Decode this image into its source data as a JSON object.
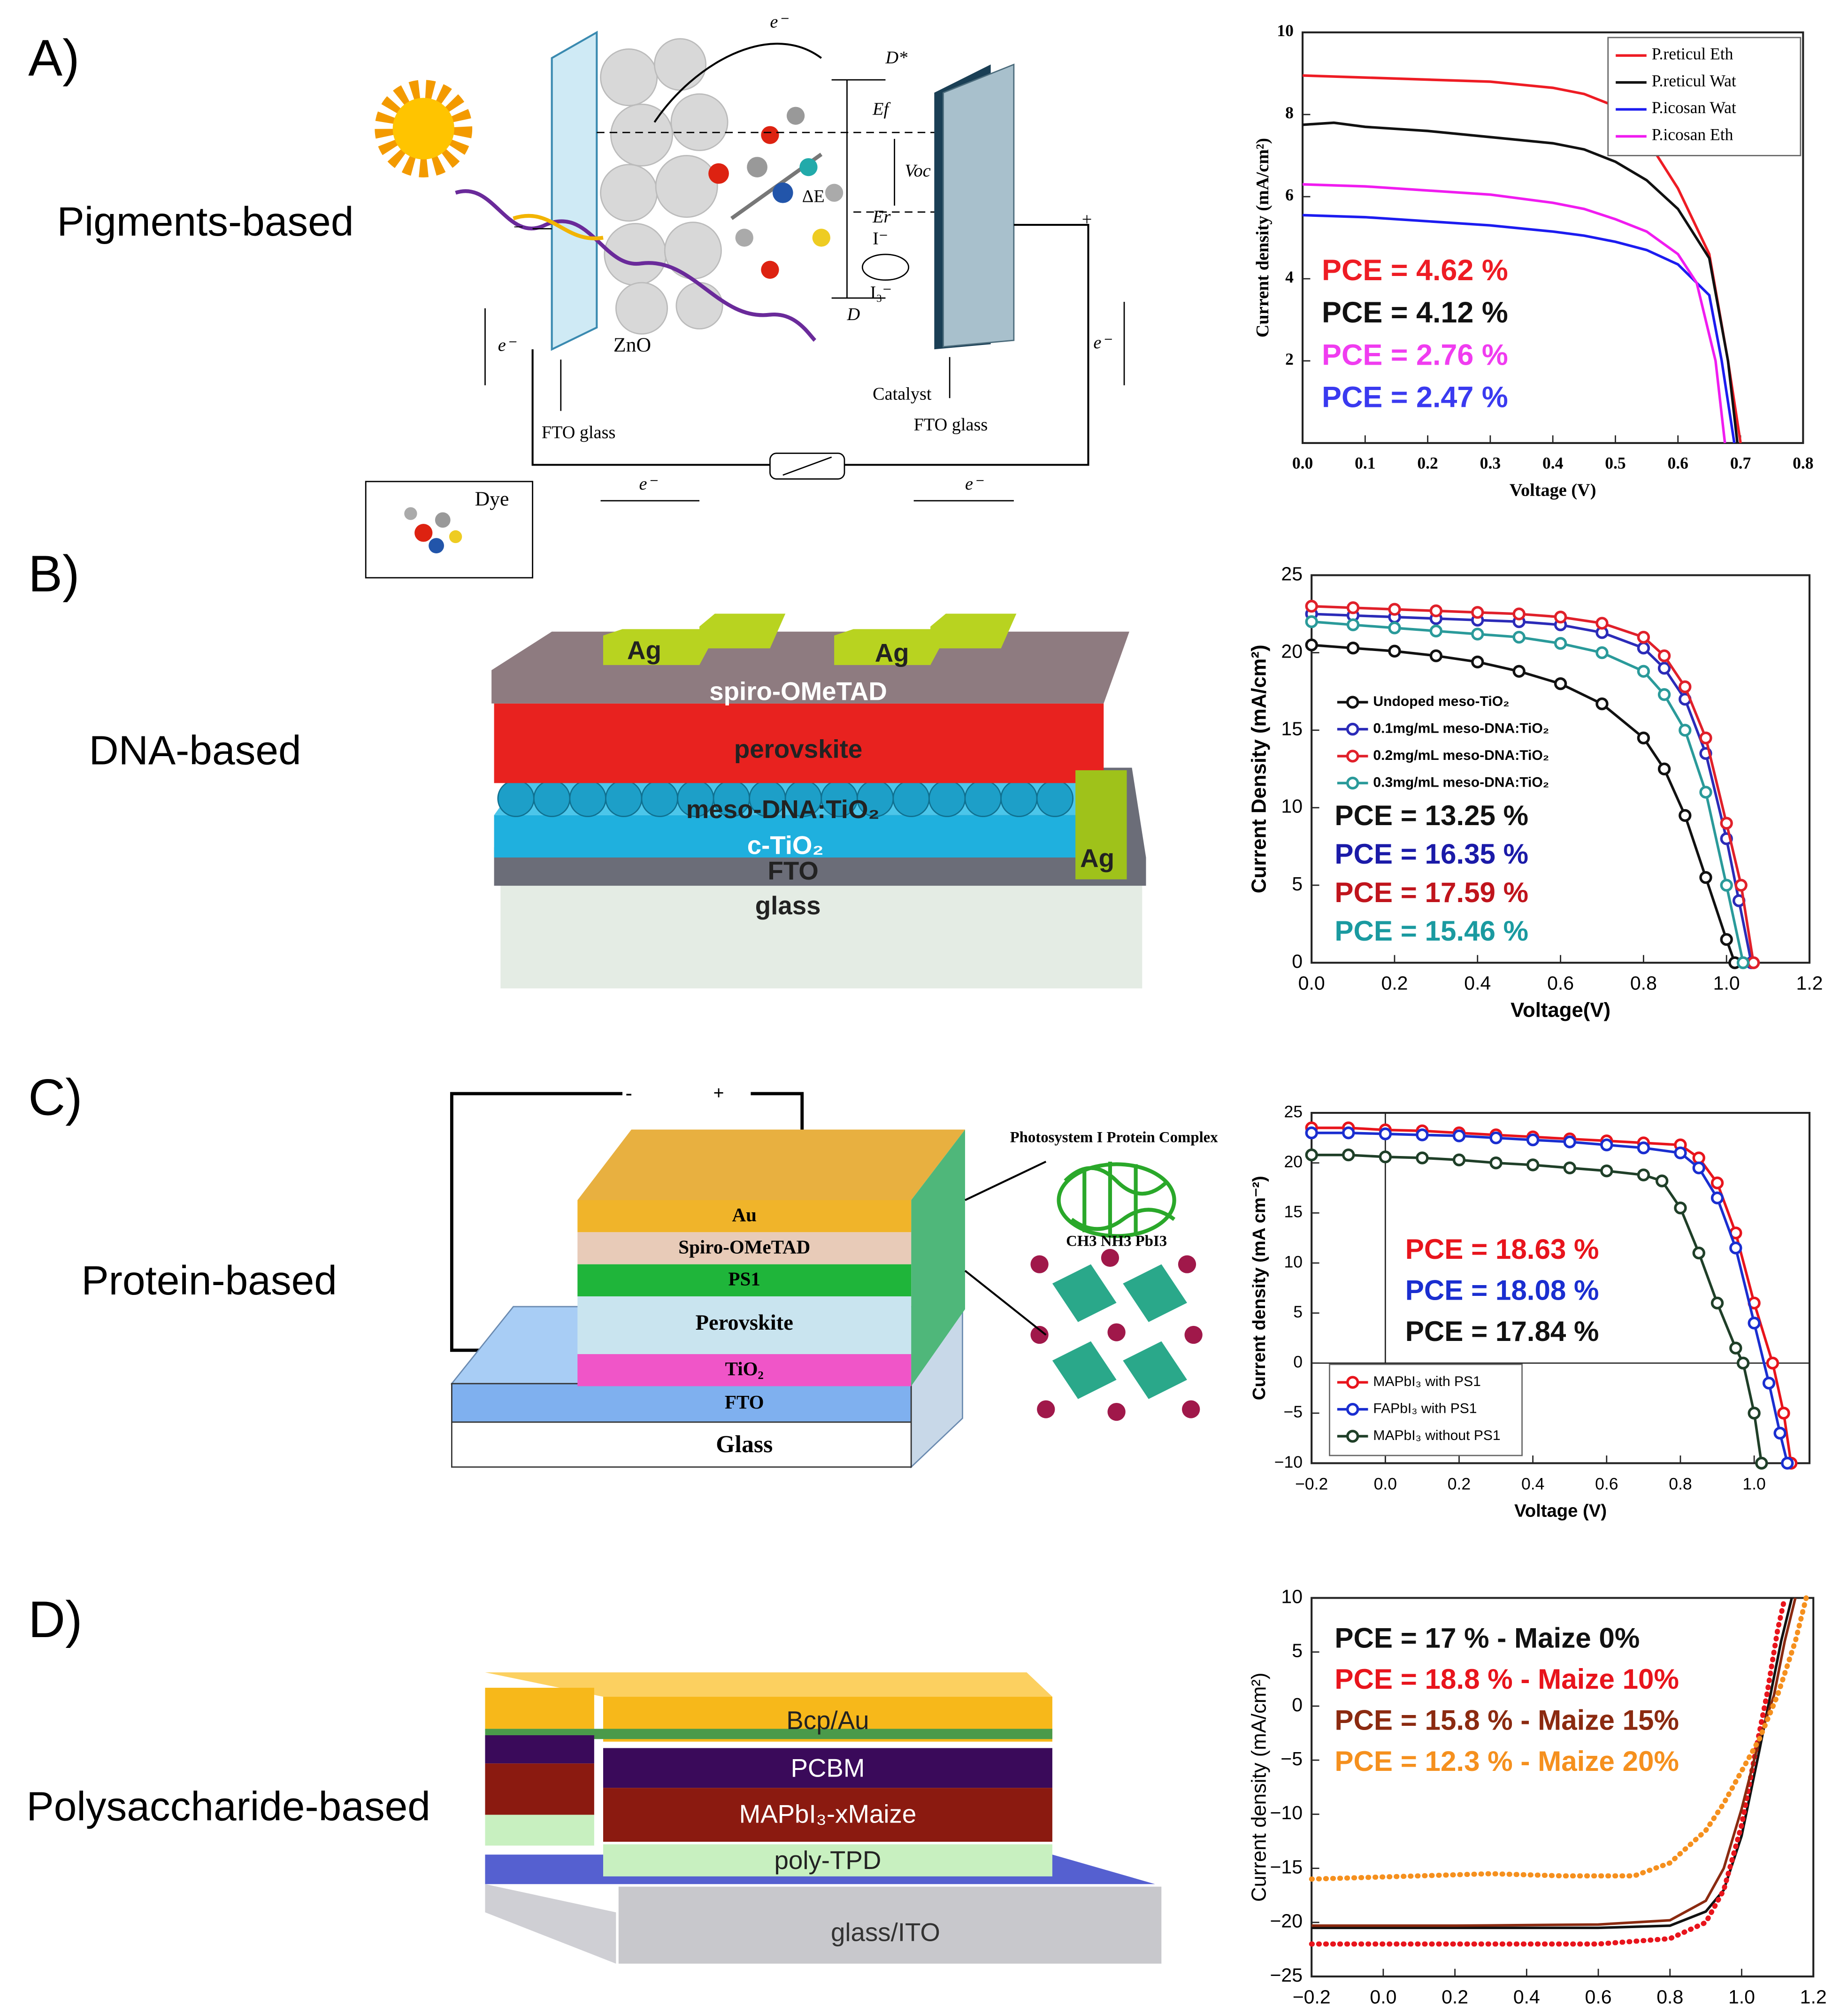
{
  "panels": [
    {
      "label": "A)",
      "name": "Pigments-based",
      "diagram": [
        "e⁻",
        "D*",
        "Ef",
        "Voc",
        "ΔE",
        "Er",
        "I⁻",
        "I₃⁻",
        "D",
        "ZnO",
        "FTO glass",
        "Catalyst",
        "FTO glass",
        "Dye",
        "e⁻",
        "e⁻",
        "e⁻",
        "e⁻",
        "−",
        "+"
      ]
    },
    {
      "label": "B)",
      "name": "DNA-based",
      "diagram": [
        "Ag",
        "Ag",
        "spiro-OMeTAD",
        "perovskite",
        "meso-DNA:TiO₂",
        "c-TiO₂",
        "FTO",
        "glass",
        "Ag"
      ]
    },
    {
      "label": "C)",
      "name": "Protein-based",
      "diagram": [
        "-",
        "+",
        "Au",
        "Spiro-OMeTAD",
        "PS1",
        "Perovskite",
        "TiO₂",
        "FTO",
        "Glass",
        "Photosystem I Protein Complex",
        "CH3 NH3 PbI3"
      ]
    },
    {
      "label": "D)",
      "name": "Polysaccharide-based",
      "diagram": [
        "Bcp/Au",
        "PCBM",
        "MAPbI₃-xMaize",
        "poly-TPD",
        "glass/ITO"
      ]
    }
  ],
  "chart_data": [
    {
      "type": "line",
      "x_label": "Voltage (V)",
      "y_label": "Current density (mA/cm²)",
      "xlim": [
        0,
        0.8
      ],
      "xticks": [
        {
          "value": 0,
          "label": "0.0"
        },
        0.1,
        0.2,
        0.3,
        0.4,
        0.5,
        0.6,
        0.7,
        0.8
      ],
      "ylim": [
        0,
        10
      ],
      "yticks": [
        2,
        4,
        6,
        8,
        10
      ],
      "legend": "top-right",
      "series": [
        {
          "name": "P.reticul Eth",
          "color": "#ee1c24",
          "x": [
            0,
            0.1,
            0.2,
            0.3,
            0.4,
            0.45,
            0.5,
            0.55,
            0.6,
            0.65,
            0.68,
            0.7
          ],
          "values": [
            8.95,
            8.9,
            8.85,
            8.8,
            8.65,
            8.5,
            8.2,
            7.4,
            6.2,
            4.6,
            2.0,
            0
          ]
        },
        {
          "name": "P.reticul Wat",
          "color": "#111111",
          "x": [
            0,
            0.05,
            0.1,
            0.2,
            0.3,
            0.4,
            0.45,
            0.5,
            0.55,
            0.6,
            0.65,
            0.68,
            0.695
          ],
          "values": [
            7.75,
            7.8,
            7.7,
            7.6,
            7.45,
            7.3,
            7.15,
            6.85,
            6.4,
            5.7,
            4.5,
            2.0,
            0
          ]
        },
        {
          "name": "P.icosan Wat",
          "color": "#1c1cf0",
          "x": [
            0,
            0.1,
            0.2,
            0.3,
            0.4,
            0.45,
            0.5,
            0.55,
            0.6,
            0.65,
            0.67,
            0.69
          ],
          "values": [
            5.55,
            5.5,
            5.4,
            5.3,
            5.15,
            5.05,
            4.9,
            4.7,
            4.35,
            3.6,
            2.0,
            0
          ]
        },
        {
          "name": "P.icosan Eth",
          "color": "#f01cf0",
          "x": [
            0,
            0.1,
            0.2,
            0.3,
            0.4,
            0.45,
            0.5,
            0.55,
            0.6,
            0.63,
            0.66,
            0.675
          ],
          "values": [
            6.3,
            6.25,
            6.15,
            6.05,
            5.85,
            5.7,
            5.45,
            5.15,
            4.6,
            3.9,
            2.0,
            0
          ]
        }
      ],
      "annotations": [
        {
          "text": "PCE = 4.62 %",
          "color": "#ee1c24"
        },
        {
          "text": "PCE = 4.12 %",
          "color": "#111111"
        },
        {
          "text": "PCE = 2.76 %",
          "color": "#f03cf0"
        },
        {
          "text": "PCE = 2.47 %",
          "color": "#3a3af0"
        }
      ]
    },
    {
      "type": "line",
      "x_label": "Voltage(V)",
      "y_label": "Current Density (mA/cm²)",
      "xlim": [
        0,
        1.2
      ],
      "xticks": [
        {
          "value": 0,
          "label": "0.0"
        },
        0.2,
        0.4,
        0.6,
        0.8,
        {
          "value": 1,
          "label": "1.0"
        },
        1.2
      ],
      "ylim": [
        0,
        25
      ],
      "yticks": [
        0,
        5,
        10,
        15,
        20,
        25
      ],
      "legend": "middle-left",
      "marker": "circle",
      "series": [
        {
          "name": "Undoped meso-TiO₂",
          "color": "#111111",
          "x": [
            0,
            0.1,
            0.2,
            0.3,
            0.4,
            0.5,
            0.6,
            0.7,
            0.8,
            0.85,
            0.9,
            0.95,
            1.0,
            1.02
          ],
          "values": [
            20.5,
            20.3,
            20.1,
            19.8,
            19.4,
            18.8,
            18,
            16.7,
            14.5,
            12.5,
            9.5,
            5.5,
            1.5,
            0
          ]
        },
        {
          "name": "0.1mg/mL meso-DNA:TiO₂",
          "color": "#2b2bb8",
          "x": [
            0,
            0.1,
            0.2,
            0.3,
            0.4,
            0.5,
            0.6,
            0.7,
            0.8,
            0.85,
            0.9,
            0.95,
            1.0,
            1.03,
            1.06
          ],
          "values": [
            22.5,
            22.4,
            22.3,
            22.2,
            22.1,
            22,
            21.8,
            21.3,
            20.3,
            19,
            17,
            13.5,
            8,
            4,
            0
          ]
        },
        {
          "name": "0.2mg/mL meso-DNA:TiO₂",
          "color": "#e0202a",
          "x": [
            0,
            0.1,
            0.2,
            0.3,
            0.4,
            0.5,
            0.6,
            0.7,
            0.8,
            0.85,
            0.9,
            0.95,
            1.0,
            1.035,
            1.065
          ],
          "values": [
            23,
            22.9,
            22.8,
            22.7,
            22.6,
            22.5,
            22.3,
            21.9,
            21,
            19.8,
            17.8,
            14.5,
            9,
            5,
            0
          ]
        },
        {
          "name": "0.3mg/mL meso-DNA:TiO₂",
          "color": "#2a9a9a",
          "x": [
            0,
            0.1,
            0.2,
            0.3,
            0.4,
            0.5,
            0.6,
            0.7,
            0.8,
            0.85,
            0.9,
            0.95,
            1.0,
            1.04
          ],
          "values": [
            22,
            21.8,
            21.6,
            21.4,
            21.2,
            21,
            20.6,
            20,
            18.8,
            17.3,
            15,
            11,
            5,
            0
          ]
        }
      ],
      "annotations": [
        {
          "text": "PCE = 13.25 %",
          "color": "#111111"
        },
        {
          "text": "PCE = 16.35 %",
          "color": "#1a1aa8"
        },
        {
          "text": "PCE = 17.59 %",
          "color": "#c0141c"
        },
        {
          "text": "PCE = 15.46 %",
          "color": "#1a9aa0"
        }
      ]
    },
    {
      "type": "line",
      "x_label": "Voltage (V)",
      "y_label": "Current density (mA cm⁻²)",
      "xlim": [
        -0.2,
        1.15
      ],
      "xticks": [
        {
          "value": -0.2,
          "label": "−0.2"
        },
        {
          "value": 0,
          "label": "0.0"
        },
        0.2,
        0.4,
        0.6,
        0.8,
        {
          "value": 1,
          "label": "1.0"
        }
      ],
      "ylim": [
        -10,
        25
      ],
      "yticks": [
        {
          "value": -10,
          "label": "−10"
        },
        {
          "value": -5,
          "label": "−5"
        },
        0,
        5,
        10,
        15,
        20,
        25
      ],
      "legend": "bottom-left",
      "marker": "circle",
      "zero_lines": true,
      "series": [
        {
          "name": "MAPbI₃ with PS1",
          "color": "#e8141c",
          "x": [
            -0.2,
            -0.1,
            0,
            0.1,
            0.2,
            0.3,
            0.4,
            0.5,
            0.6,
            0.7,
            0.8,
            0.85,
            0.9,
            0.95,
            1.0,
            1.05,
            1.08,
            1.1
          ],
          "values": [
            23.5,
            23.5,
            23.3,
            23.2,
            23,
            22.8,
            22.6,
            22.4,
            22.2,
            22,
            21.8,
            20.5,
            18,
            13,
            6,
            0,
            -5,
            -10
          ]
        },
        {
          "name": "FAPbI₃ with PS1",
          "color": "#1a2ed0",
          "x": [
            -0.2,
            -0.1,
            0,
            0.1,
            0.2,
            0.3,
            0.4,
            0.5,
            0.6,
            0.7,
            0.8,
            0.85,
            0.9,
            0.95,
            1.0,
            1.04,
            1.07,
            1.09
          ],
          "values": [
            23,
            23,
            22.9,
            22.8,
            22.7,
            22.5,
            22.3,
            22.1,
            21.8,
            21.5,
            21,
            19.5,
            16.5,
            11.5,
            4,
            -2,
            -7,
            -10
          ]
        },
        {
          "name": "MAPbI₃ without PS1",
          "color": "#1f3f28",
          "x": [
            -0.2,
            -0.1,
            0,
            0.1,
            0.2,
            0.3,
            0.4,
            0.5,
            0.6,
            0.7,
            0.75,
            0.8,
            0.85,
            0.9,
            0.95,
            0.97,
            1.0,
            1.02
          ],
          "values": [
            20.8,
            20.8,
            20.6,
            20.5,
            20.3,
            20,
            19.8,
            19.5,
            19.2,
            18.8,
            18.2,
            15.5,
            11,
            6,
            1.5,
            0,
            -5,
            -10
          ]
        }
      ],
      "annotations": [
        {
          "text": "PCE = 18.63 %",
          "color": "#e8141c"
        },
        {
          "text": "PCE = 18.08 %",
          "color": "#1a2ed0"
        },
        {
          "text": "PCE = 17.84 %",
          "color": "#111111"
        }
      ]
    },
    {
      "type": "line",
      "x_label": "Voltage (V)",
      "y_label": "Current density (mA/cm²)",
      "xlim": [
        -0.2,
        1.2
      ],
      "xticks": [
        {
          "value": -0.2,
          "label": "−0.2"
        },
        {
          "value": 0,
          "label": "0.0"
        },
        0.2,
        0.4,
        0.6,
        0.8,
        {
          "value": 1,
          "label": "1.0"
        },
        1.2
      ],
      "ylim": [
        -25,
        10
      ],
      "yticks": [
        {
          "value": -25,
          "label": "−25"
        },
        {
          "value": -20,
          "label": "−20"
        },
        {
          "value": -15,
          "label": "−15"
        },
        {
          "value": -10,
          "label": "−10"
        },
        {
          "value": -5,
          "label": "−5"
        },
        0,
        5,
        10
      ],
      "series": [
        {
          "color": "#111111",
          "x": [
            -0.2,
            0.2,
            0.6,
            0.8,
            0.9,
            0.95,
            1.0,
            1.05,
            1.08,
            1.11,
            1.14
          ],
          "values": [
            -20.5,
            -20.5,
            -20.5,
            -20.3,
            -19,
            -17,
            -12,
            -4,
            1,
            6,
            10
          ]
        },
        {
          "color": "#e8141c",
          "style": "dots",
          "x": [
            -0.2,
            0.2,
            0.6,
            0.8,
            0.9,
            0.95,
            1.0,
            1.04,
            1.07,
            1.1,
            1.12
          ],
          "values": [
            -22,
            -22,
            -22,
            -21.5,
            -20,
            -17,
            -11,
            -4,
            1,
            7,
            10
          ]
        },
        {
          "color": "#8b2a10",
          "x": [
            -0.2,
            0.2,
            0.6,
            0.8,
            0.9,
            0.95,
            1.0,
            1.05,
            1.09,
            1.12,
            1.15
          ],
          "values": [
            -20.3,
            -20.3,
            -20.2,
            -19.8,
            -18,
            -15,
            -9.5,
            -3,
            1,
            6,
            10
          ]
        },
        {
          "color": "#f5901e",
          "style": "dots",
          "x": [
            -0.2,
            0.1,
            0.3,
            0.5,
            0.7,
            0.8,
            0.9,
            0.95,
            1.0,
            1.05,
            1.1,
            1.15,
            1.18
          ],
          "values": [
            -16,
            -15.7,
            -15.5,
            -15.7,
            -15.7,
            -14.5,
            -11.5,
            -9,
            -6,
            -3,
            1,
            6,
            10
          ]
        }
      ],
      "annotations": [
        {
          "text": "PCE = 17 % - Maize 0%",
          "color": "#111111"
        },
        {
          "text": "PCE = 18.8 % - Maize 10%",
          "color": "#e8141c"
        },
        {
          "text": "PCE = 15.8 % - Maize 15%",
          "color": "#8b2a10"
        },
        {
          "text": "PCE = 12.3 % - Maize 20%",
          "color": "#f5901e"
        }
      ]
    }
  ]
}
